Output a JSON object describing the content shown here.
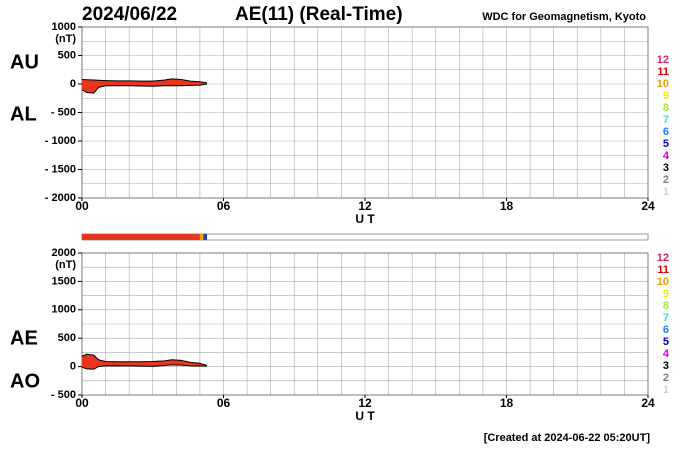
{
  "header": {
    "date": "2024/06/22",
    "title": "AE(11) (Real-Time)",
    "source": "WDC for Geomagnetism, Kyoto"
  },
  "footer": "[Created at 2024-06-22 05:20UT]",
  "status_bar": [
    {
      "color": "#e8361e",
      "from": 0,
      "to": 5.0
    },
    {
      "color": "#f0a000",
      "from": 5.0,
      "to": 5.15
    },
    {
      "color": "#2040c0",
      "from": 5.15,
      "to": 5.3
    }
  ],
  "chart_data": [
    {
      "type": "area-band",
      "y_unit": "(nT)",
      "xlabel": "U T",
      "fill": "#e8361e",
      "line_color": "#000000",
      "xlim": [
        0,
        24
      ],
      "xticks": [
        {
          "value": 0,
          "label": "00"
        },
        {
          "value": 6,
          "label": "06"
        },
        12,
        18,
        24
      ],
      "ylim": [
        -2000,
        1000
      ],
      "yticks": [
        1000,
        500,
        0,
        {
          "value": -500,
          "label": "- 500"
        },
        {
          "value": -1000,
          "label": "- 1000"
        },
        {
          "value": -1500,
          "label": "- 1500"
        },
        {
          "value": -2000,
          "label": "- 2000"
        }
      ],
      "grid": {
        "x": 1,
        "y": 250
      },
      "x": [
        0,
        0.2,
        0.5,
        0.7,
        1,
        1.5,
        2,
        2.5,
        3,
        3.5,
        3.8,
        4.2,
        4.6,
        5,
        5.3
      ],
      "series": [
        {
          "name": "AU",
          "values": [
            80,
            75,
            70,
            65,
            60,
            55,
            55,
            50,
            50,
            70,
            90,
            80,
            50,
            40,
            20
          ]
        },
        {
          "name": "AL",
          "values": [
            -100,
            -150,
            -160,
            -60,
            -30,
            -30,
            -30,
            -35,
            -40,
            -30,
            -30,
            -30,
            -25,
            -20,
            0
          ]
        }
      ],
      "key": {
        "labels": [
          "12",
          "11",
          "10",
          "9",
          "8",
          "7",
          "6",
          "5",
          "4",
          "3",
          "2",
          "1"
        ],
        "colors": [
          "#e0206a",
          "#e00000",
          "#f0a000",
          "#f0f000",
          "#a0f040",
          "#40e0e0",
          "#2080f0",
          "#0000c0",
          "#d000d0",
          "#000000",
          "#808080",
          "#d0d0d0"
        ]
      }
    },
    {
      "type": "area-band",
      "y_unit": "(nT)",
      "xlabel": "U T",
      "fill": "#e8361e",
      "line_color": "#000000",
      "xlim": [
        0,
        24
      ],
      "xticks": [
        {
          "value": 0,
          "label": "00"
        },
        {
          "value": 6,
          "label": "06"
        },
        12,
        18,
        24
      ],
      "ylim": [
        -500,
        2000
      ],
      "yticks": [
        2000,
        1500,
        1000,
        500,
        0,
        {
          "value": -500,
          "label": "- 500"
        }
      ],
      "grid": {
        "x": 1,
        "y": 250
      },
      "x": [
        0,
        0.2,
        0.5,
        0.7,
        1,
        1.5,
        2,
        2.5,
        3,
        3.5,
        3.8,
        4.2,
        4.6,
        5,
        5.3
      ],
      "series": [
        {
          "name": "AE",
          "values": [
            180,
            220,
            200,
            120,
            90,
            85,
            85,
            85,
            90,
            100,
            120,
            110,
            75,
            60,
            20
          ]
        },
        {
          "name": "AO",
          "values": [
            -10,
            -40,
            -45,
            0,
            15,
            12,
            12,
            8,
            5,
            20,
            30,
            25,
            12,
            10,
            10
          ]
        }
      ],
      "key": {
        "labels": [
          "12",
          "11",
          "10",
          "9",
          "8",
          "7",
          "6",
          "5",
          "4",
          "3",
          "2",
          "1"
        ],
        "colors": [
          "#e0206a",
          "#e00000",
          "#f0a000",
          "#f0f000",
          "#a0f040",
          "#40e0e0",
          "#2080f0",
          "#0000c0",
          "#d000d0",
          "#000000",
          "#808080",
          "#d0d0d0"
        ]
      }
    }
  ]
}
